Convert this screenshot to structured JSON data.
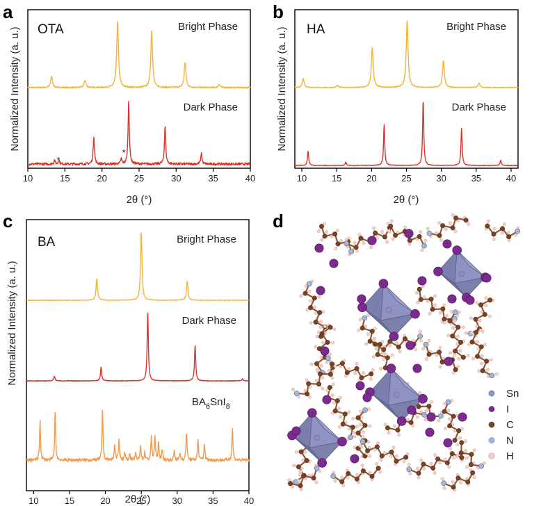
{
  "panels": {
    "a": {
      "letter": "a",
      "sample": "OTA",
      "ylabel": "Normalized Intensity (a. u.)",
      "xlabel": "2θ (°)",
      "top_label": "Bright Phase",
      "mid_label": "Dark Phase",
      "marker": "*"
    },
    "b": {
      "letter": "b",
      "sample": "HA",
      "ylabel": "Normalized Intensity (a. u.)",
      "xlabel": "2θ (°)",
      "top_label": "Bright Phase",
      "mid_label": "Dark Phase"
    },
    "c": {
      "letter": "c",
      "sample": "BA",
      "ylabel": "Normalized Intensity (a. u.)",
      "xlabel": "2θ (°)",
      "top_label": "Bright Phase",
      "mid_label": "Dark Phase",
      "bottom_label_main": "BA",
      "bottom_label_sub1": "6",
      "bottom_label_mid": "SnI",
      "bottom_label_sub2": "8"
    },
    "d": {
      "letter": "d"
    }
  },
  "legend": {
    "items": [
      {
        "label": "Sn",
        "color": "#8b91c4"
      },
      {
        "label": "I",
        "color": "#7b2a8e"
      },
      {
        "label": "C",
        "color": "#7a4222"
      },
      {
        "label": "N",
        "color": "#9cb8dc"
      },
      {
        "label": "H",
        "color": "#f2cfc7"
      }
    ]
  },
  "chart_data": [
    {
      "type": "line",
      "panel": "a",
      "xlabel": "2θ (°)",
      "ylabel": "Normalized Intensity (a. u.)",
      "xlim": [
        10,
        40
      ],
      "xticks": [
        10,
        15,
        20,
        25,
        30,
        35,
        40
      ],
      "series": [
        {
          "name": "Bright Phase",
          "color": "#f2b43c",
          "peaks": [
            [
              13.2,
              0.17
            ],
            [
              17.7,
              0.11
            ],
            [
              22.1,
              1.0
            ],
            [
              26.7,
              0.86
            ],
            [
              31.2,
              0.38
            ],
            [
              35.8,
              0.05
            ]
          ]
        },
        {
          "name": "Dark Phase",
          "color": "#d8352a",
          "peaks": [
            [
              13.6,
              0.06
            ],
            [
              14.2,
              0.07
            ],
            [
              18.9,
              0.44
            ],
            [
              22.6,
              0.08
            ],
            [
              23.6,
              1.0
            ],
            [
              28.5,
              0.6
            ],
            [
              33.4,
              0.17
            ]
          ]
        }
      ],
      "annotations": [
        {
          "text": "*",
          "x": 13.6
        },
        {
          "text": "*",
          "x": 22.6
        }
      ]
    },
    {
      "type": "line",
      "panel": "b",
      "xlabel": "2θ (°)",
      "ylabel": "Normalized Intensity (a. u.)",
      "xlim": [
        9,
        41
      ],
      "xticks": [
        10,
        15,
        20,
        25,
        30,
        35,
        40
      ],
      "series": [
        {
          "name": "Bright Phase",
          "color": "#f2b43c",
          "peaks": [
            [
              10.2,
              0.14
            ],
            [
              15.1,
              0.03
            ],
            [
              20.1,
              0.6
            ],
            [
              25.1,
              1.0
            ],
            [
              30.3,
              0.4
            ],
            [
              35.4,
              0.07
            ]
          ]
        },
        {
          "name": "Dark Phase",
          "color": "#d8352a",
          "peaks": [
            [
              10.9,
              0.22
            ],
            [
              16.3,
              0.05
            ],
            [
              21.8,
              0.62
            ],
            [
              27.4,
              1.0
            ],
            [
              32.9,
              0.57
            ],
            [
              38.5,
              0.08
            ]
          ]
        }
      ]
    },
    {
      "type": "line",
      "panel": "c",
      "xlabel": "2θ (°)",
      "ylabel": "Normalized Intensity (a. u.)",
      "xlim": [
        9,
        40
      ],
      "xticks": [
        10,
        15,
        20,
        25,
        30,
        35,
        40
      ],
      "series": [
        {
          "name": "Bright Phase",
          "color": "#f2b43c",
          "peaks": [
            [
              18.8,
              0.32
            ],
            [
              25.0,
              1.0
            ],
            [
              31.4,
              0.28
            ]
          ]
        },
        {
          "name": "Dark Phase",
          "color": "#d8352a",
          "peaks": [
            [
              12.9,
              0.07
            ],
            [
              19.4,
              0.2
            ],
            [
              25.9,
              1.0
            ],
            [
              32.5,
              0.52
            ],
            [
              39.1,
              0.03
            ]
          ]
        },
        {
          "name": "BA6SnI8",
          "color": "#f49a4c",
          "peaks": [
            [
              10.9,
              0.57
            ],
            [
              13.0,
              0.69
            ],
            [
              19.6,
              0.74
            ],
            [
              21.3,
              0.24
            ],
            [
              21.9,
              0.3
            ],
            [
              22.7,
              0.12
            ],
            [
              23.4,
              0.1
            ],
            [
              24.2,
              0.1
            ],
            [
              24.9,
              0.22
            ],
            [
              25.5,
              0.12
            ],
            [
              26.4,
              0.33
            ],
            [
              26.9,
              0.35
            ],
            [
              27.4,
              0.24
            ],
            [
              27.9,
              0.16
            ],
            [
              29.6,
              0.14
            ],
            [
              30.4,
              0.1
            ],
            [
              31.3,
              0.41
            ],
            [
              32.9,
              0.3
            ],
            [
              33.8,
              0.24
            ],
            [
              37.7,
              0.46
            ]
          ]
        }
      ]
    }
  ]
}
